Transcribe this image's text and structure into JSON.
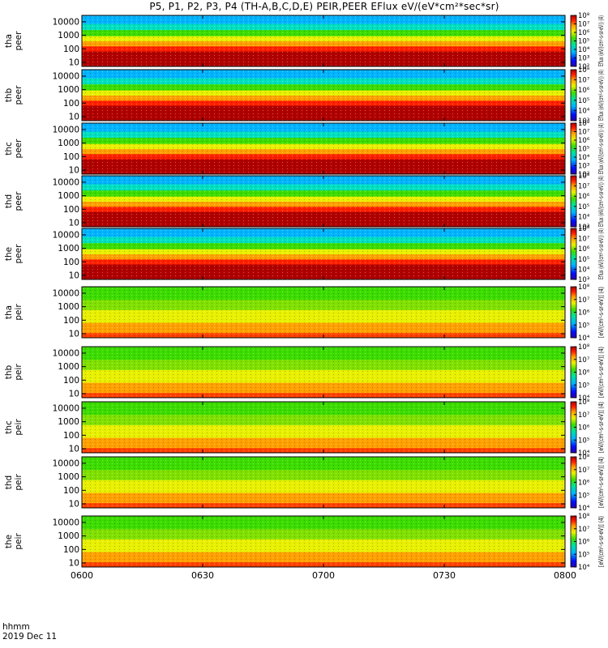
{
  "title": "P5, P1, P2, P3, P4 (TH-A,B,C,D,E) PEIR,PEER EFlux eV/(eV*cm²*sec*sr)",
  "footer": {
    "label_line1": "hhmm",
    "label_line2": "2019 Dec 11"
  },
  "chart_data": {
    "type": "heatmap",
    "description_free": true,
    "x": {
      "ticks": [
        "0600",
        "0630",
        "0700",
        "0730",
        "0800"
      ],
      "range_minutes": [
        0,
        120
      ]
    },
    "y": {
      "scale": "log",
      "ticks": [
        "10",
        "100",
        "1000",
        "10000"
      ],
      "range": [
        5,
        30000
      ]
    },
    "colorbar": {
      "scale": "log",
      "ticks_full": [
        "10²",
        "10³",
        "10⁴",
        "10⁵",
        "10⁶",
        "10⁷",
        "10⁸"
      ],
      "ticks_ion": [
        "10⁴",
        "10⁵",
        "10⁶",
        "10⁷",
        "10⁸"
      ],
      "ticks_ion_low": [
        "10³",
        "10⁴",
        "10⁵",
        "10⁶",
        "10⁷",
        "10⁸"
      ],
      "label_electron": "Eflux (eV/(cm²-s-sr-eV)) (4)",
      "label_ion": "[eV/(cm²-s-sr-eV)] (4)"
    },
    "panels": [
      {
        "probe": "tha",
        "species": "peer",
        "label1": "tha",
        "label2": "peer",
        "cb": "ticks_full"
      },
      {
        "probe": "thb",
        "species": "peer",
        "label1": "thb",
        "label2": "peer",
        "cb": "ticks_ion_low"
      },
      {
        "probe": "thc",
        "species": "peer",
        "label1": "thc",
        "label2": "peer",
        "cb": "ticks_full"
      },
      {
        "probe": "thd",
        "species": "peer",
        "label1": "thd",
        "label2": "peer",
        "cb": "ticks_ion_low"
      },
      {
        "probe": "the",
        "species": "peer",
        "label1": "the",
        "label2": "peer",
        "cb": "ticks_ion_low"
      },
      {
        "probe": "tha",
        "species": "peir",
        "label1": "tha",
        "label2": "peir",
        "cb": "ticks_ion"
      },
      {
        "probe": "thb",
        "species": "peir",
        "label1": "thb",
        "label2": "peir",
        "cb": "ticks_ion"
      },
      {
        "probe": "thc",
        "species": "peir",
        "label1": "thc",
        "label2": "peir",
        "cb": "ticks_ion"
      },
      {
        "probe": "thd",
        "species": "peir",
        "label1": "thd",
        "label2": "peir",
        "cb": "ticks_ion"
      },
      {
        "probe": "the",
        "species": "peir",
        "label1": "the",
        "label2": "peir",
        "cb": "ticks_ion"
      }
    ]
  }
}
